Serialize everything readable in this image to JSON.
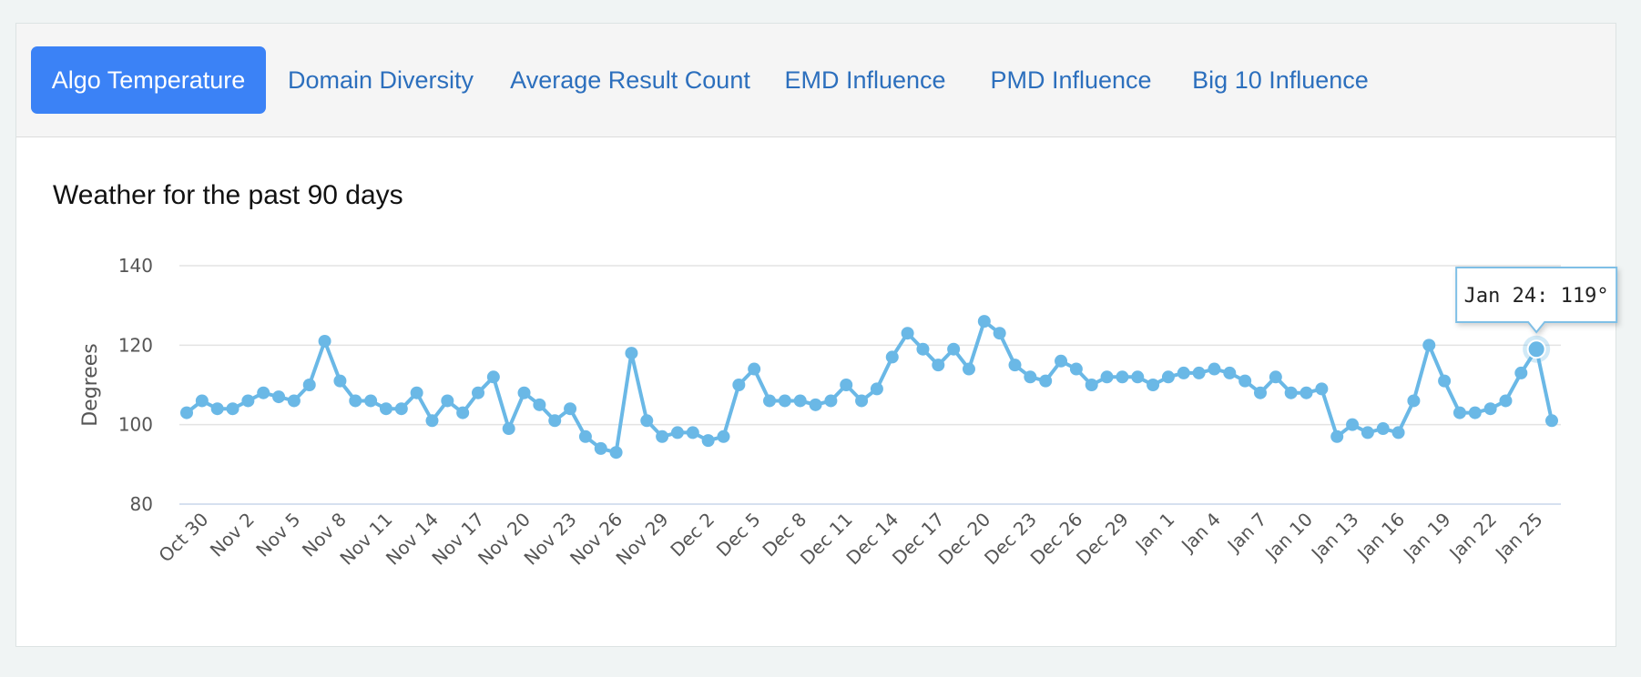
{
  "tabs": [
    {
      "label": "Algo Temperature",
      "active": true
    },
    {
      "label": "Domain Diversity",
      "active": false
    },
    {
      "label": "Average Result Count",
      "active": false
    },
    {
      "label": "EMD Influence",
      "active": false
    },
    {
      "label": "PMD Influence",
      "active": false
    },
    {
      "label": "Big 10 Influence",
      "active": false
    }
  ],
  "colors": {
    "active_tab": "#3b82f6",
    "tab_text": "#2c6fbd",
    "series": "#6ab8e6",
    "grid": "#e3e3e3"
  },
  "chart_data": {
    "type": "line",
    "title": "Weather for the past 90 days",
    "ylabel": "Degrees",
    "xlabel": "",
    "ylim": [
      80,
      140
    ],
    "yticks": [
      80,
      100,
      120,
      140
    ],
    "grid": true,
    "x_start": "Oct 29",
    "x_end": "Jan 25",
    "xtick_labels": [
      "Oct 30",
      "Nov 2",
      "Nov 5",
      "Nov 8",
      "Nov 11",
      "Nov 14",
      "Nov 17",
      "Nov 20",
      "Nov 23",
      "Nov 26",
      "Nov 29",
      "Dec 2",
      "Dec 5",
      "Dec 8",
      "Dec 11",
      "Dec 14",
      "Dec 17",
      "Dec 20",
      "Dec 23",
      "Dec 26",
      "Dec 29",
      "Jan 1",
      "Jan 4",
      "Jan 7",
      "Jan 10",
      "Jan 13",
      "Jan 16",
      "Jan 19",
      "Jan 22",
      "Jan 25"
    ],
    "series": [
      {
        "values": [
          103,
          106,
          104,
          104,
          106,
          108,
          107,
          106,
          110,
          121,
          111,
          106,
          106,
          104,
          104,
          108,
          101,
          106,
          103,
          108,
          112,
          99,
          108,
          105,
          101,
          104,
          97,
          94,
          93,
          118,
          101,
          97,
          98,
          98,
          96,
          97,
          110,
          114,
          106,
          106,
          106,
          105,
          106,
          110,
          106,
          109,
          117,
          123,
          119,
          115,
          119,
          114,
          126,
          123,
          115,
          112,
          111,
          116,
          114,
          110,
          112,
          112,
          112,
          110,
          112,
          113,
          113,
          114,
          113,
          111,
          108,
          112,
          108,
          108,
          109,
          97,
          100,
          98,
          99,
          98,
          106,
          120,
          111,
          103,
          103,
          104,
          106,
          113,
          119,
          101
        ]
      }
    ],
    "tooltip": {
      "text": "Jan 24: 119°",
      "index": 88
    }
  }
}
